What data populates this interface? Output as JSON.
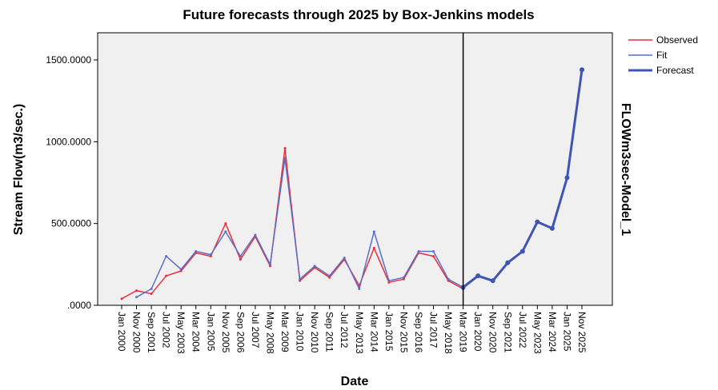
{
  "chart_data": {
    "type": "line",
    "title": "Future forecasts through 2025 by Box-Jenkins models",
    "xlabel": "Date",
    "ylabel": "Stream Flow(m3/sec.)",
    "right_label": "FLOWm3sec-Model_1",
    "ylim": [
      0,
      1500
    ],
    "y_ticks": [
      ".0000",
      "500.0000",
      "1000.0000",
      "1500.0000"
    ],
    "y_tick_values": [
      0,
      500,
      1000,
      1500
    ],
    "x_ticks": [
      "Jan 2000",
      "Nov 2000",
      "Sep 2001",
      "Jul 2002",
      "May 2003",
      "Mar 2004",
      "Jan 2005",
      "Nov 2005",
      "Sep 2006",
      "Jul 2007",
      "May 2008",
      "Mar 2009",
      "Jan 2010",
      "Nov 2010",
      "Sep 2011",
      "Jul 2012",
      "May 2013",
      "Mar 2014",
      "Jan 2015",
      "Nov 2015",
      "Sep 2016",
      "Jul 2017",
      "May 2018",
      "Mar 2019",
      "Jan 2020",
      "Nov 2020",
      "Sep 2021",
      "Jul 2022",
      "May 2023",
      "Mar 2024",
      "Jan 2025",
      "Nov 2025"
    ],
    "forecast_start": "Mar 2019",
    "grid": false,
    "legend_position": "top-right",
    "series": [
      {
        "name": "Observed",
        "color": "#e8303a",
        "line": "thin",
        "x": [
          "Jan 2000",
          "Nov 2000",
          "Sep 2001",
          "Jul 2002",
          "May 2003",
          "Mar 2004",
          "Jan 2005",
          "Nov 2005",
          "Sep 2006",
          "Jul 2007",
          "May 2008",
          "Mar 2009",
          "Jan 2010",
          "Nov 2010",
          "Sep 2011",
          "Jul 2012",
          "May 2013",
          "Mar 2014",
          "Jan 2015",
          "Nov 2015",
          "Sep 2016",
          "Jul 2017",
          "May 2018",
          "Mar 2019"
        ],
        "values": [
          40,
          90,
          70,
          180,
          210,
          320,
          300,
          500,
          280,
          420,
          240,
          960,
          150,
          230,
          170,
          280,
          120,
          350,
          140,
          160,
          320,
          300,
          150,
          100
        ]
      },
      {
        "name": "Fit",
        "color": "#5a6fc8",
        "line": "thin",
        "x": [
          "Nov 2000",
          "Sep 2001",
          "Jul 2002",
          "May 2003",
          "Mar 2004",
          "Jan 2005",
          "Nov 2005",
          "Sep 2006",
          "Jul 2007",
          "May 2008",
          "Mar 2009",
          "Jan 2010",
          "Nov 2010",
          "Sep 2011",
          "Jul 2012",
          "May 2013",
          "Mar 2014",
          "Jan 2015",
          "Nov 2015",
          "Sep 2016",
          "Jul 2017",
          "May 2018",
          "Mar 2019"
        ],
        "values": [
          50,
          100,
          300,
          220,
          330,
          310,
          450,
          300,
          430,
          250,
          900,
          160,
          240,
          180,
          290,
          100,
          450,
          150,
          170,
          330,
          330,
          160,
          110
        ]
      },
      {
        "name": "Forecast",
        "color": "#3f55b5",
        "line": "thick",
        "x": [
          "Mar 2019",
          "Jan 2020",
          "Nov 2020",
          "Sep 2021",
          "Jul 2022",
          "May 2023",
          "Mar 2024",
          "Jan 2025",
          "Nov 2025"
        ],
        "values": [
          110,
          180,
          150,
          260,
          330,
          510,
          470,
          780,
          1440
        ]
      }
    ]
  }
}
